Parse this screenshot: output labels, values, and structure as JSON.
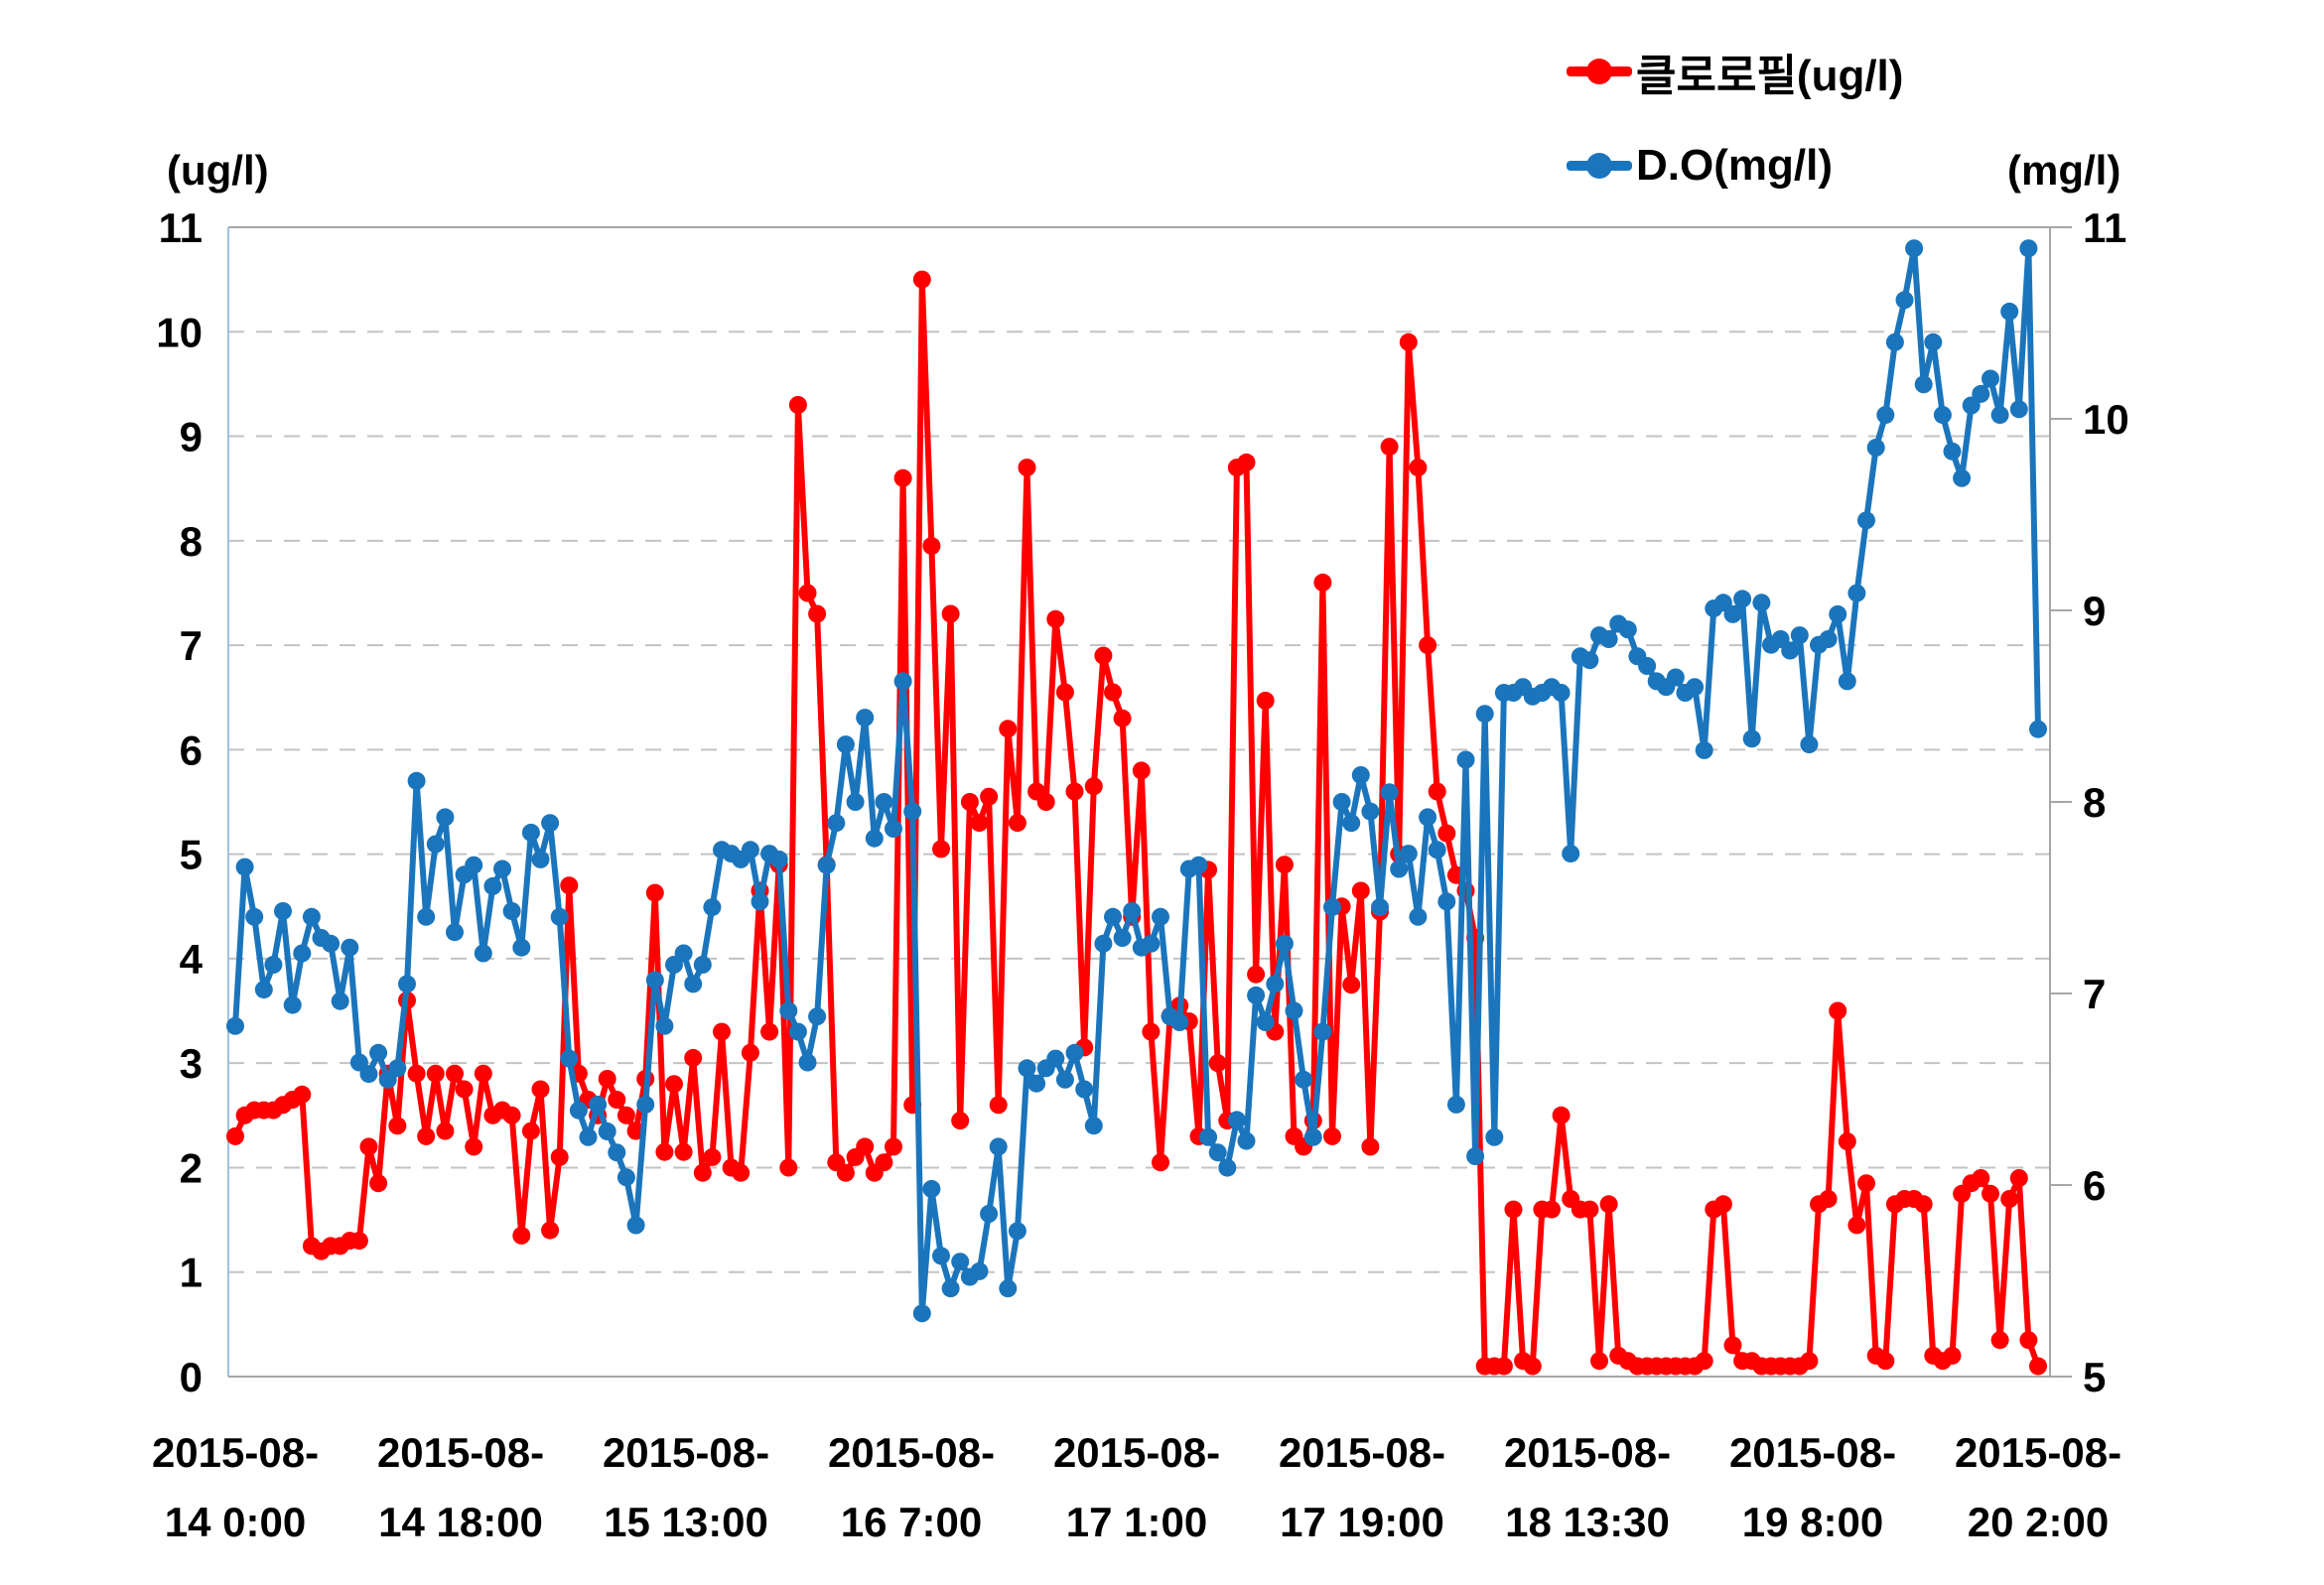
{
  "chart_data": {
    "type": "line",
    "title": "",
    "left_axis": {
      "label": "(ug/l)",
      "min": 0,
      "max": 11,
      "step": 1
    },
    "right_axis": {
      "label": "(mg/l)",
      "min": 5,
      "max": 11,
      "step": 1
    },
    "grid": {
      "horizontal": true,
      "dashed": true
    },
    "legend_position": "top-right",
    "x_labels": [
      {
        "top": "2015-08-",
        "bottom": "14 0:00"
      },
      {
        "top": "2015-08-",
        "bottom": "14 18:00"
      },
      {
        "top": "2015-08-",
        "bottom": "15 13:00"
      },
      {
        "top": "2015-08-",
        "bottom": "16 7:00"
      },
      {
        "top": "2015-08-",
        "bottom": "17 1:00"
      },
      {
        "top": "2015-08-",
        "bottom": "17 19:00"
      },
      {
        "top": "2015-08-",
        "bottom": "18 13:30"
      },
      {
        "top": "2015-08-",
        "bottom": "19 8:00"
      },
      {
        "top": "2015-08-",
        "bottom": "20 2:00"
      }
    ],
    "series": [
      {
        "name": "클로로필(ug/l)",
        "color": "#FF0000",
        "axis": "left",
        "unit": "ug/l",
        "values": [
          2.3,
          2.5,
          2.55,
          2.55,
          2.55,
          2.6,
          2.65,
          2.7,
          1.25,
          1.2,
          1.25,
          1.25,
          1.3,
          1.3,
          2.2,
          1.85,
          2.9,
          2.4,
          3.6,
          2.9,
          2.3,
          2.9,
          2.35,
          2.9,
          2.75,
          2.2,
          2.9,
          2.5,
          2.55,
          2.5,
          1.35,
          2.35,
          2.75,
          1.4,
          2.1,
          4.7,
          2.9,
          2.65,
          2.5,
          2.85,
          2.65,
          2.5,
          2.35,
          2.85,
          4.63,
          2.15,
          2.8,
          2.15,
          3.05,
          1.95,
          2.1,
          3.3,
          2.0,
          1.95,
          3.1,
          4.65,
          3.3,
          4.9,
          2.0,
          9.3,
          7.5,
          7.3,
          4.9,
          2.05,
          1.95,
          2.1,
          2.2,
          1.95,
          2.05,
          2.2,
          8.6,
          2.6,
          10.5,
          7.95,
          5.05,
          7.3,
          2.45,
          5.5,
          5.3,
          5.55,
          2.6,
          6.2,
          5.3,
          8.7,
          5.6,
          5.5,
          7.25,
          6.55,
          5.6,
          3.15,
          5.65,
          6.9,
          6.55,
          6.3,
          4.4,
          5.8,
          3.3,
          2.05,
          3.45,
          3.55,
          3.4,
          2.3,
          4.85,
          3.0,
          2.45,
          8.7,
          8.75,
          3.85,
          6.47,
          3.3,
          4.9,
          2.3,
          2.2,
          2.45,
          7.6,
          2.3,
          4.5,
          3.75,
          4.65,
          2.2,
          4.45,
          8.9,
          5.0,
          9.9,
          8.7,
          7.0,
          5.6,
          5.2,
          4.8,
          4.65,
          4.2,
          0.1,
          0.1,
          0.1,
          1.6,
          0.15,
          0.1,
          1.6,
          1.6,
          2.5,
          1.7,
          1.6,
          1.6,
          0.15,
          1.65,
          0.2,
          0.15,
          0.1,
          0.1,
          0.1,
          0.1,
          0.1,
          0.1,
          0.1,
          0.15,
          1.6,
          1.65,
          0.3,
          0.15,
          0.15,
          0.1,
          0.1,
          0.1,
          0.1,
          0.1,
          0.15,
          1.65,
          1.7,
          3.5,
          2.25,
          1.45,
          1.85,
          0.2,
          0.15,
          1.65,
          1.7,
          1.7,
          1.65,
          0.2,
          0.15,
          0.2,
          1.75,
          1.85,
          1.9,
          1.75,
          0.35,
          1.7,
          1.9,
          0.35,
          0.1
        ]
      },
      {
        "name": "D.O(mg/l)",
        "color": "#1B75BC",
        "axis": "right",
        "unit": "mg/l",
        "values": [
          6.83,
          7.66,
          7.4,
          7.02,
          7.15,
          7.43,
          6.94,
          7.21,
          7.4,
          7.29,
          7.26,
          6.96,
          7.24,
          6.64,
          6.58,
          6.69,
          6.55,
          6.61,
          7.05,
          8.11,
          7.4,
          7.78,
          7.92,
          7.32,
          7.62,
          7.67,
          7.21,
          7.56,
          7.65,
          7.43,
          7.24,
          7.84,
          7.7,
          7.89,
          7.4,
          6.66,
          6.39,
          6.25,
          6.42,
          6.28,
          6.17,
          6.04,
          5.79,
          6.42,
          7.07,
          6.83,
          7.15,
          7.21,
          7.05,
          7.15,
          7.45,
          7.75,
          7.73,
          7.7,
          7.75,
          7.48,
          7.73,
          7.7,
          6.91,
          6.8,
          6.64,
          6.88,
          7.67,
          7.89,
          8.3,
          8.0,
          8.44,
          7.81,
          8.0,
          7.86,
          8.63,
          7.95,
          5.33,
          5.98,
          5.63,
          5.46,
          5.6,
          5.52,
          5.55,
          5.85,
          6.2,
          5.46,
          5.76,
          6.61,
          6.53,
          6.61,
          6.66,
          6.55,
          6.69,
          6.5,
          6.31,
          7.26,
          7.4,
          7.29,
          7.43,
          7.24,
          7.26,
          7.4,
          6.88,
          6.85,
          7.65,
          7.67,
          6.25,
          6.17,
          6.09,
          6.34,
          6.23,
          6.99,
          6.85,
          7.05,
          7.26,
          6.91,
          6.55,
          6.25,
          6.8,
          7.45,
          8.0,
          7.89,
          8.14,
          7.95,
          7.45,
          8.05,
          7.65,
          7.73,
          7.4,
          7.92,
          7.75,
          7.48,
          6.42,
          8.22,
          6.15,
          8.46,
          6.25,
          8.57,
          8.57,
          8.6,
          8.55,
          8.57,
          8.6,
          8.57,
          7.73,
          8.76,
          8.74,
          8.87,
          8.85,
          8.93,
          8.9,
          8.76,
          8.71,
          8.63,
          8.6,
          8.65,
          8.57,
          8.6,
          8.27,
          9.01,
          9.04,
          8.98,
          9.06,
          8.33,
          9.04,
          8.82,
          8.85,
          8.79,
          8.87,
          8.3,
          8.82,
          8.85,
          8.98,
          8.63,
          9.09,
          9.47,
          9.85,
          10.02,
          10.4,
          10.62,
          10.89,
          10.18,
          10.4,
          10.02,
          9.83,
          9.69,
          10.07,
          10.13,
          10.21,
          10.02,
          10.56,
          10.05,
          10.89,
          8.38
        ]
      }
    ]
  },
  "legend": {
    "items": [
      {
        "label": "클로로필(ug/l)",
        "color": "#FF0000"
      },
      {
        "label": "D.O(mg/l)",
        "color": "#1B75BC"
      }
    ]
  },
  "style": {
    "grid_color": "#C3C3C3",
    "border_color": "#A6A6A6",
    "left_border_color": "#9DC3E6",
    "tick_label_color": "#000000"
  }
}
